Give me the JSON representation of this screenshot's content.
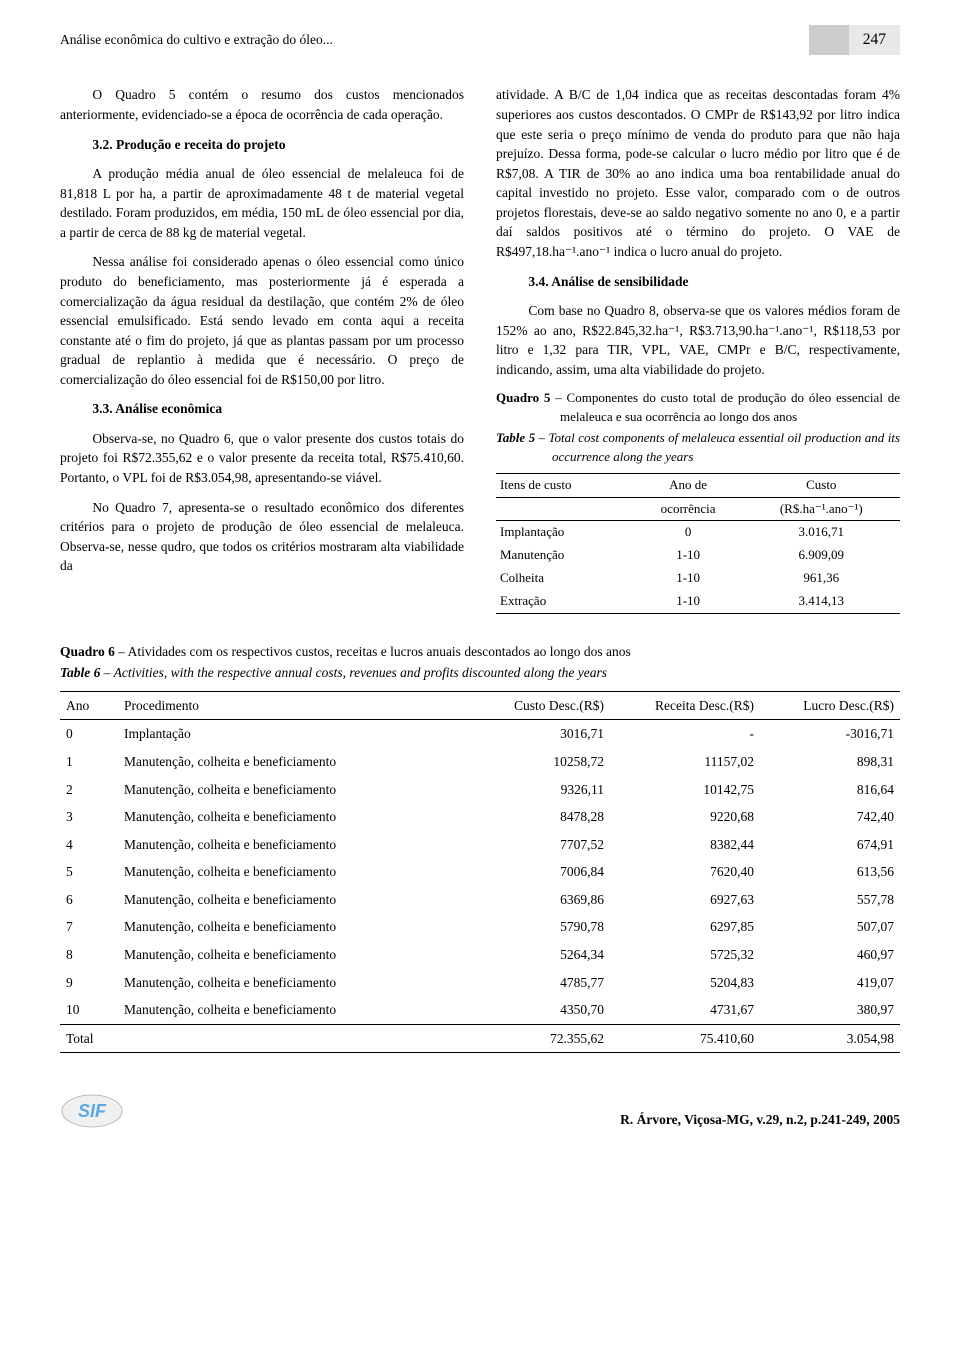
{
  "header": {
    "running_title": "Análise econômica do cultivo e extração do óleo...",
    "page_number": "247"
  },
  "left_column": {
    "p1": "O Quadro 5 contém o resumo dos custos mencionados anteriormente, evidenciado-se a época de ocorrência de cada operação.",
    "h1": "3.2. Produção e receita do projeto",
    "p2": "A produção média anual de óleo essencial de melaleuca foi de 81,818 L por ha, a partir de aproximadamente 48 t de material vegetal destilado. Foram produzidos, em média, 150 mL de óleo essencial por dia, a partir de cerca de 88 kg de material vegetal.",
    "p3": "Nessa análise foi considerado apenas o óleo essencial como único produto do beneficiamento, mas posteriormente já é esperada a comercialização da água residual da destilação, que contém 2% de óleo essencial emulsificado. Está sendo levado em conta aqui a receita constante até o fim do projeto, já que as plantas passam por um processo gradual de replantio à medida que é necessário. O preço de comercialização do óleo essencial foi de R$150,00 por litro.",
    "h2": "3.3. Análise econômica",
    "p4": "Observa-se, no Quadro 6, que o valor presente dos custos totais do projeto foi R$72.355,62 e o valor presente da receita total, R$75.410,60. Portanto, o VPL foi de R$3.054,98, apresentando-se viável.",
    "p5": "No Quadro 7, apresenta-se o resultado econômico dos diferentes critérios para o projeto de produção de óleo essencial de melaleuca. Observa-se, nesse qudro, que todos os critérios mostraram alta viabilidade da"
  },
  "right_column": {
    "p1": "atividade. A B/C de 1,04 indica que as receitas descontadas foram 4% superiores aos custos descontados. O CMPr de R$143,92 por litro indica que este seria o preço mínimo de venda do produto para que não haja prejuízo. Dessa forma, pode-se calcular o lucro médio por litro que é de R$7,08. A TIR de 30% ao ano indica uma boa rentabilidade anual do capital investido no projeto. Esse valor, comparado com o de outros projetos florestais, deve-se ao saldo negativo somente no ano 0, e a partir daí saldos positivos até o término do projeto. O VAE de R$497,18.ha⁻¹.ano⁻¹ indica o lucro anual do projeto.",
    "h1": "3.4. Análise de sensibilidade",
    "p2": "Com base no Quadro 8, observa-se que os valores médios foram de 152% ao ano, R$22.845,32.ha⁻¹, R$3.713,90.ha⁻¹.ano⁻¹, R$118,53 por litro e 1,32 para TIR, VPL, VAE, CMPr e B/C, respectivamente, indicando, assim, uma alta viabilidade do projeto."
  },
  "quadro5": {
    "title": "Quadro 5 – Componentes do custo total de produção do óleo essencial de melaleuca e sua ocorrência ao longo dos anos",
    "title_en": "Table 5 – Total cost components of melaleuca essential oil production and its occurrence along the years",
    "headers": {
      "c1": "Itens de custo",
      "c2a": "Ano de",
      "c2b": "ocorrência",
      "c3a": "Custo",
      "c3b": "(R$.ha⁻¹.ano⁻¹)"
    },
    "rows": [
      {
        "item": "Implantação",
        "ano": "0",
        "custo": "3.016,71"
      },
      {
        "item": "Manutenção",
        "ano": "1-10",
        "custo": "6.909,09"
      },
      {
        "item": "Colheita",
        "ano": "1-10",
        "custo": "961,36"
      },
      {
        "item": "Extração",
        "ano": "1-10",
        "custo": "3.414,13"
      }
    ]
  },
  "quadro6": {
    "title": "Quadro 6 – Atividades com os respectivos custos, receitas e lucros anuais descontados ao longo dos anos",
    "title_en": "Table 6 – Activities, with the respective annual costs, revenues and profits discounted along the years",
    "headers": {
      "c1": "Ano",
      "c2": "Procedimento",
      "c3": "Custo Desc.(R$)",
      "c4": "Receita Desc.(R$)",
      "c5": "Lucro Desc.(R$)"
    },
    "rows": [
      {
        "ano": "0",
        "proc": "Implantação",
        "custo": "3016,71",
        "rec": "-",
        "luc": "-3016,71"
      },
      {
        "ano": "1",
        "proc": "Manutenção, colheita e beneficiamento",
        "custo": "10258,72",
        "rec": "11157,02",
        "luc": "898,31"
      },
      {
        "ano": "2",
        "proc": "Manutenção, colheita e beneficiamento",
        "custo": "9326,11",
        "rec": "10142,75",
        "luc": "816,64"
      },
      {
        "ano": "3",
        "proc": "Manutenção, colheita e beneficiamento",
        "custo": "8478,28",
        "rec": "9220,68",
        "luc": "742,40"
      },
      {
        "ano": "4",
        "proc": "Manutenção, colheita e beneficiamento",
        "custo": "7707,52",
        "rec": "8382,44",
        "luc": "674,91"
      },
      {
        "ano": "5",
        "proc": "Manutenção, colheita e beneficiamento",
        "custo": "7006,84",
        "rec": "7620,40",
        "luc": "613,56"
      },
      {
        "ano": "6",
        "proc": "Manutenção, colheita e beneficiamento",
        "custo": "6369,86",
        "rec": "6927,63",
        "luc": "557,78"
      },
      {
        "ano": "7",
        "proc": "Manutenção, colheita e beneficiamento",
        "custo": "5790,78",
        "rec": "6297,85",
        "luc": "507,07"
      },
      {
        "ano": "8",
        "proc": "Manutenção, colheita e beneficiamento",
        "custo": "5264,34",
        "rec": "5725,32",
        "luc": "460,97"
      },
      {
        "ano": "9",
        "proc": "Manutenção, colheita e beneficiamento",
        "custo": "4785,77",
        "rec": "5204,83",
        "luc": "419,07"
      },
      {
        "ano": "10",
        "proc": "Manutenção, colheita e beneficiamento",
        "custo": "4350,70",
        "rec": "4731,67",
        "luc": "380,97"
      }
    ],
    "total": {
      "label": "Total",
      "custo": "72.355,62",
      "rec": "75.410,60",
      "luc": "3.054,98"
    }
  },
  "footer": {
    "journal": "R. Árvore, Viçosa-MG, v.29, n.2, p.241-249, 2005"
  }
}
